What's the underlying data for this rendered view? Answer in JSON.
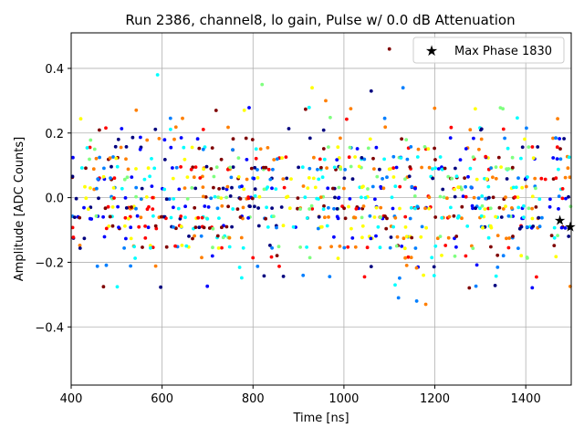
{
  "chart_data": {
    "type": "scatter",
    "title": "Run 2386, channel8, lo gain, Pulse w/ 0.0 dB Attenuation",
    "xlabel": "Time [ns]",
    "ylabel": "Amplitude [ADC Counts]",
    "xlim": [
      400,
      1500
    ],
    "ylim": [
      -0.58,
      0.51
    ],
    "xticks": [
      400,
      600,
      800,
      1000,
      1200,
      1400
    ],
    "xtick_labels": [
      "400",
      "600",
      "800",
      "1000",
      "1200",
      "1400"
    ],
    "yticks": [
      -0.4,
      -0.2,
      0.0,
      0.2,
      0.4
    ],
    "ytick_labels": [
      "−0.4",
      "−0.2",
      "0.0",
      "0.2",
      "0.4"
    ],
    "grid": true,
    "legend": {
      "position": "top-right",
      "label": "Max Phase 1830",
      "marker": "star"
    },
    "colormap": [
      "#00007f",
      "#0000ff",
      "#007fff",
      "#00ffff",
      "#7fff7f",
      "#ffff00",
      "#ff7f00",
      "#ff0000",
      "#7f0000"
    ],
    "scatter_note_count_per_series": 140,
    "series": [
      {
        "marker": "dot",
        "x_range": [
          400,
          1500
        ],
        "y_center": 0.0,
        "y_spread": 0.13,
        "point_count": 900
      },
      {
        "marker": "star",
        "color": "#000000",
        "x": [
          1475,
          1498
        ],
        "y": [
          -0.07,
          -0.09
        ]
      }
    ]
  }
}
